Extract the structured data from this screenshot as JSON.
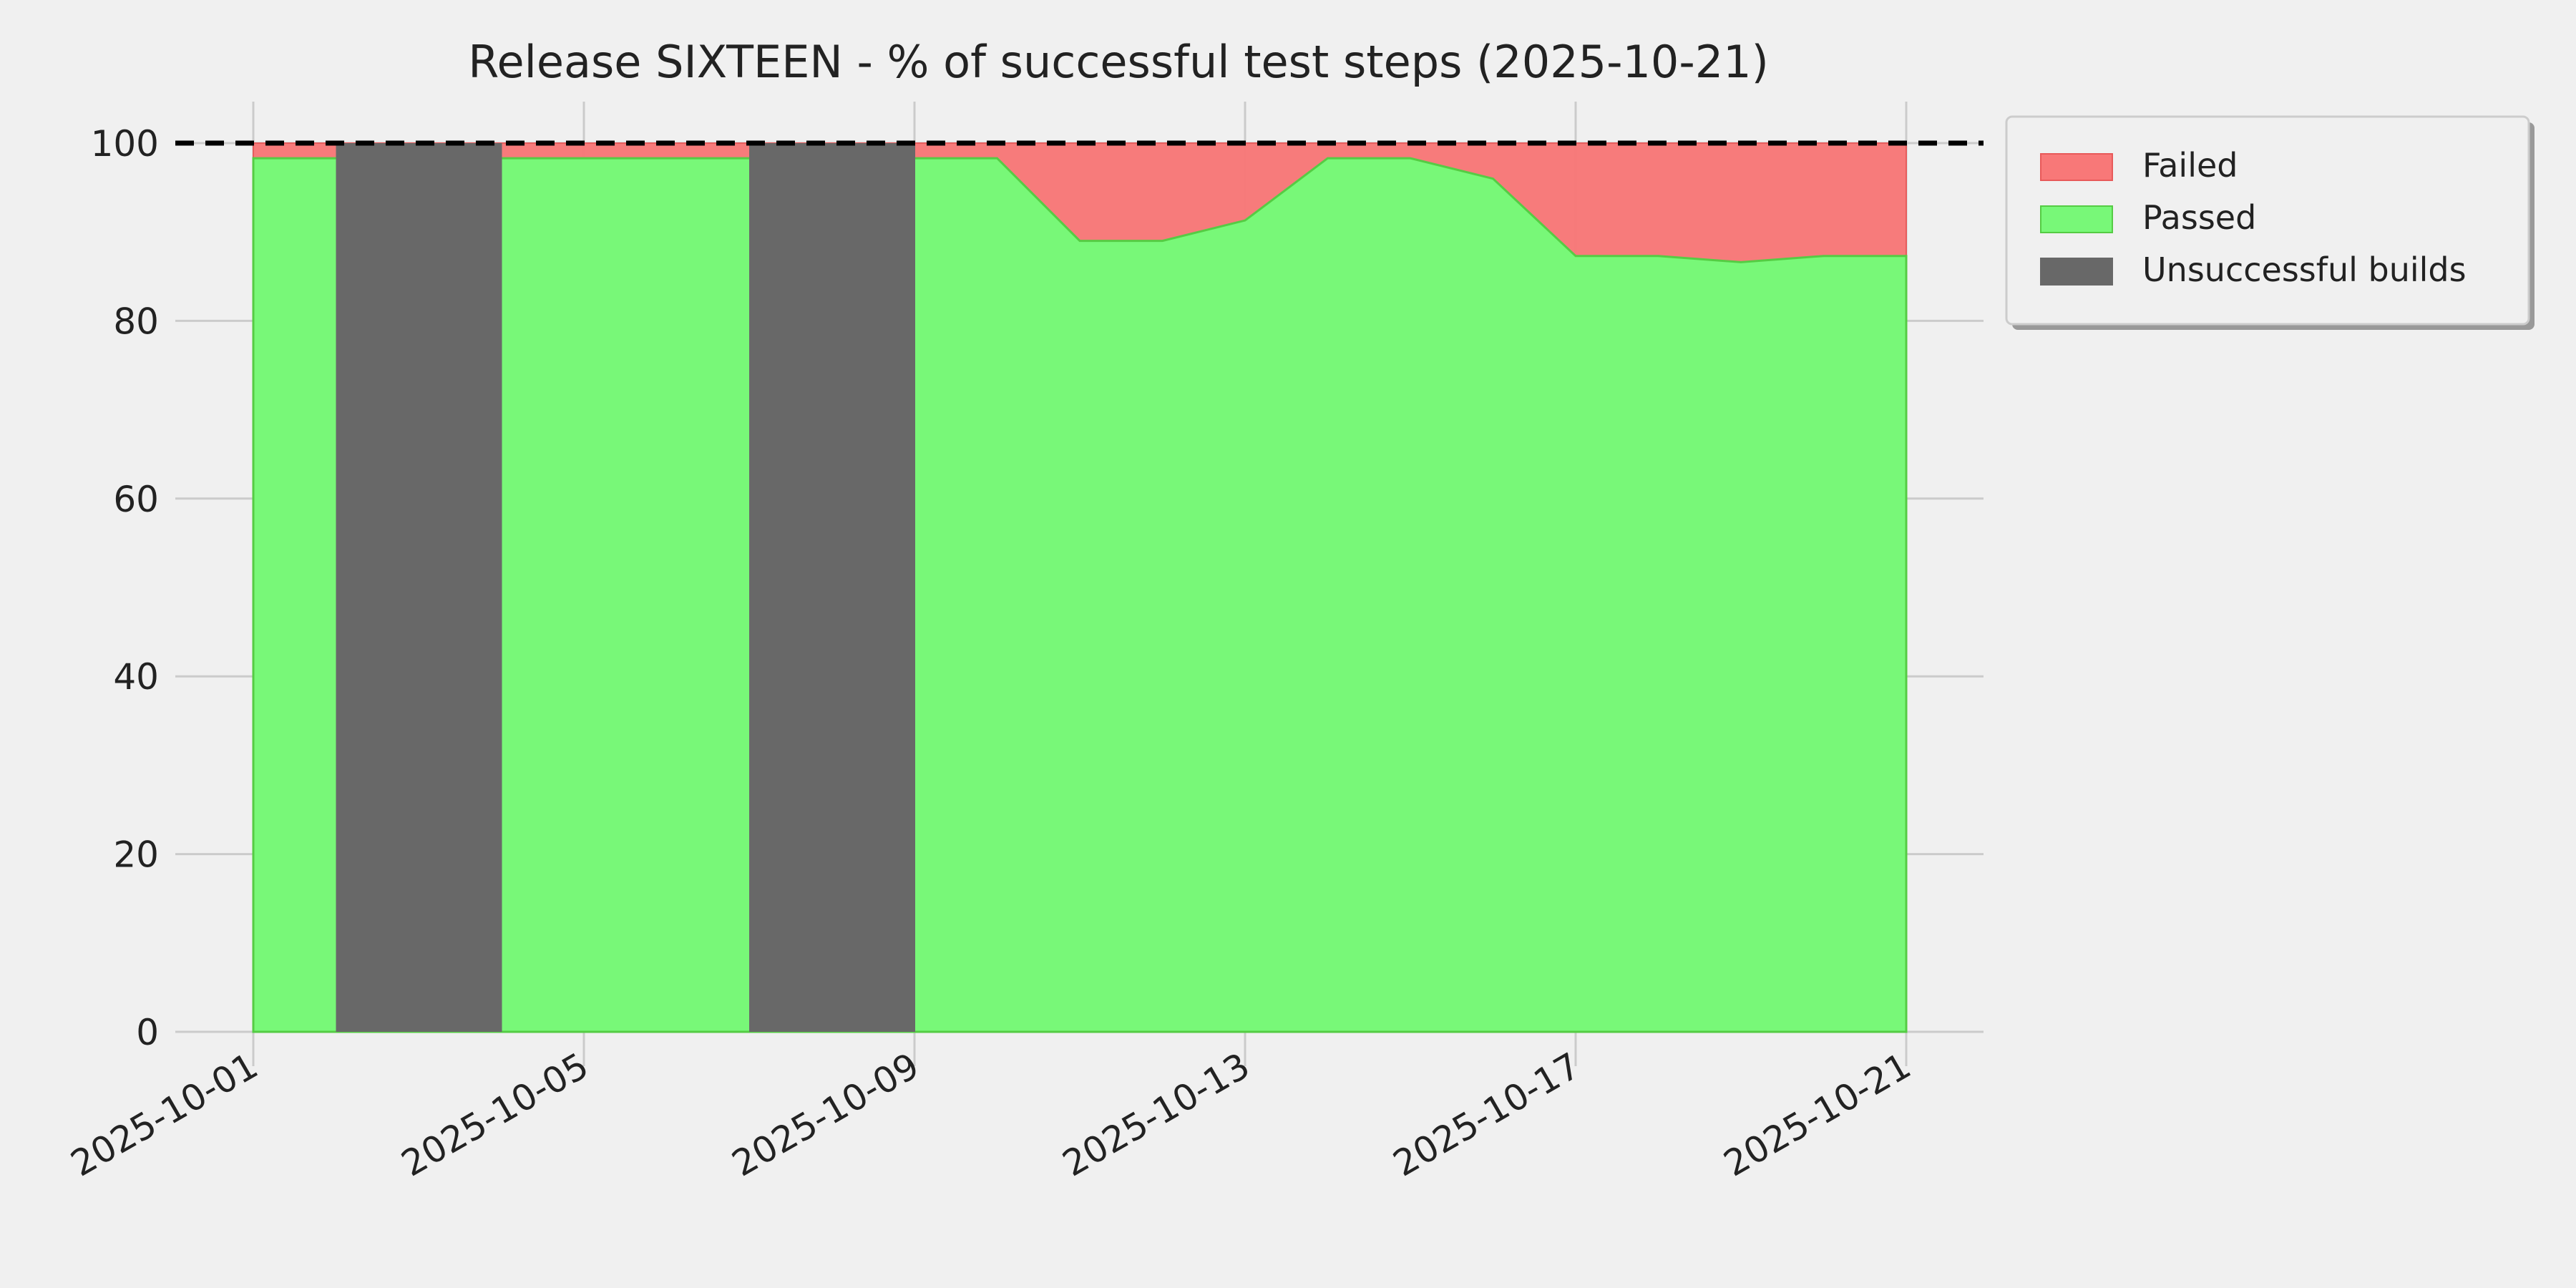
{
  "chart_data": {
    "type": "area",
    "title": "Release SIXTEEN - % of successful test steps (2025-10-21)",
    "xlabel": "",
    "ylabel": "",
    "x": [
      "2025-10-01",
      "2025-10-02",
      "2025-10-03",
      "2025-10-04",
      "2025-10-05",
      "2025-10-06",
      "2025-10-07",
      "2025-10-08",
      "2025-10-09",
      "2025-10-10",
      "2025-10-11",
      "2025-10-12",
      "2025-10-13",
      "2025-10-14",
      "2025-10-15",
      "2025-10-16",
      "2025-10-17",
      "2025-10-18",
      "2025-10-19",
      "2025-10-20",
      "2025-10-21"
    ],
    "series": [
      {
        "name": "Failed",
        "color": "#f87878",
        "stack_top": 100
      },
      {
        "name": "Passed",
        "color": "#78f878",
        "values": [
          98.3,
          null,
          null,
          98.3,
          98.3,
          98.3,
          null,
          null,
          98.3,
          98.3,
          89.0,
          89.0,
          91.3,
          98.3,
          98.3,
          96.0,
          87.3,
          87.3,
          86.6,
          87.3,
          87.3
        ]
      },
      {
        "name": "Unsuccessful builds",
        "color": "#686868",
        "dates": [
          "2025-10-02",
          "2025-10-03",
          "2025-10-07",
          "2025-10-08"
        ]
      }
    ],
    "reference_line": {
      "y": 100,
      "style": "dashed",
      "color": "#000000"
    },
    "xticks": [
      "2025-10-01",
      "2025-10-05",
      "2025-10-09",
      "2025-10-13",
      "2025-10-17",
      "2025-10-21"
    ],
    "yticks": [
      0,
      20,
      40,
      60,
      80,
      100
    ],
    "ylim": [
      0,
      100
    ],
    "grid": true,
    "legend_position": "outside-top-right"
  }
}
